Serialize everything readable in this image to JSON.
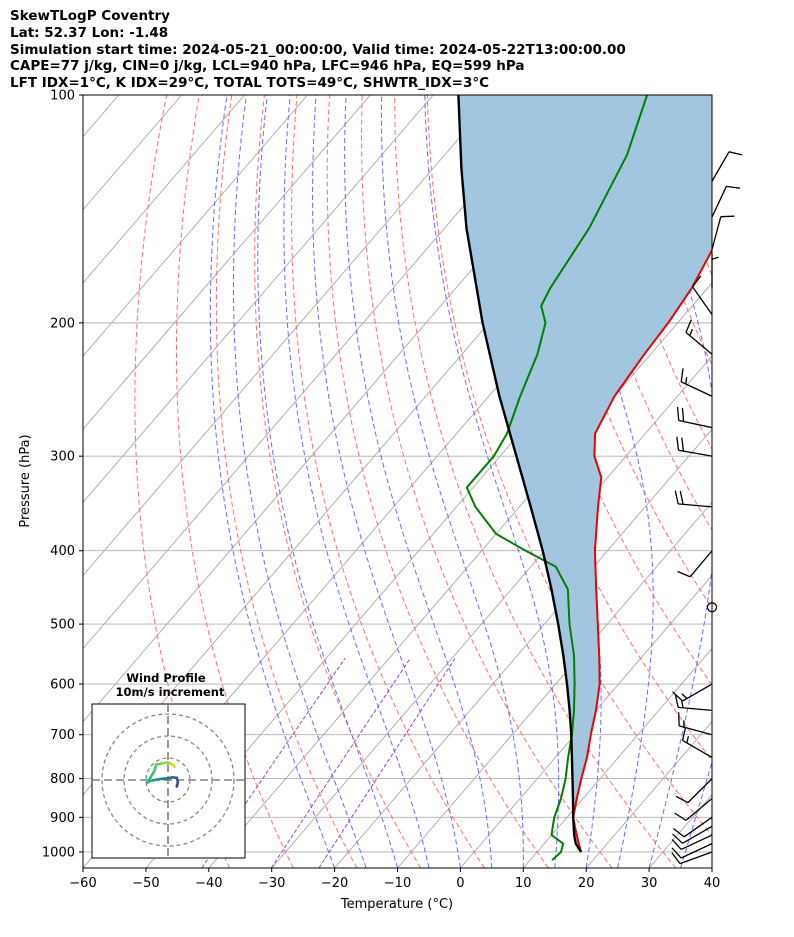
{
  "title_lines": [
    "SkewTLogP Coventry",
    "Lat: 52.37   Lon: -1.48",
    "Simulation start time: 2024-05-21_00:00:00, Valid time: 2024-05-22T13:00:00.00",
    "CAPE=77 j/kg, CIN=0 j/kg, LCL=940 hPa, LFC=946 hPa, EQ=599 hPa",
    "LFT IDX=1°C, K IDX=29°C, TOTAL TOTS=49°C, SHWTR_IDX=3°C"
  ],
  "chart_data": {
    "type": "skewt",
    "xlabel": "Temperature (°C)",
    "ylabel": "Pressure (hPa)",
    "xlim": [
      -60,
      40
    ],
    "ylim": [
      1050,
      100
    ],
    "x_ticks": [
      -60,
      -50,
      -40,
      -30,
      -20,
      -10,
      0,
      10,
      20,
      30,
      40
    ],
    "x_tick_labels": [
      "−60",
      "−50",
      "−40",
      "−30",
      "−20",
      "−10",
      "0",
      "10",
      "20",
      "30",
      "40"
    ],
    "y_ticks": [
      1000,
      900,
      800,
      700,
      600,
      500,
      400,
      300,
      200,
      100
    ],
    "y_tick_labels": [
      "1000",
      "900",
      "800",
      "700",
      "600",
      "500",
      "400",
      "300",
      "200",
      "100"
    ],
    "colors": {
      "temperature": "#ee0000",
      "dewpoint": "#008000",
      "parcel": "#000000",
      "cape_fill": "#a3c6e0",
      "dry_adiabat": "#ff6f6f",
      "moist_adiabat": "#6a6aff",
      "mixing_ratio": "#9b45c8",
      "isotherm": "#a8a8a8",
      "isobar": "#b0b0b0"
    },
    "temperature": [
      {
        "p": 1000,
        "t": 17.0
      },
      {
        "p": 975,
        "t": 15.5
      },
      {
        "p": 950,
        "t": 14.0
      },
      {
        "p": 925,
        "t": 12.5
      },
      {
        "p": 900,
        "t": 11.0
      },
      {
        "p": 850,
        "t": 9.0
      },
      {
        "p": 800,
        "t": 7.0
      },
      {
        "p": 750,
        "t": 5.0
      },
      {
        "p": 700,
        "t": 2.5
      },
      {
        "p": 650,
        "t": 0.0
      },
      {
        "p": 600,
        "t": -3.0
      },
      {
        "p": 550,
        "t": -7.0
      },
      {
        "p": 500,
        "t": -11.5
      },
      {
        "p": 450,
        "t": -16.5
      },
      {
        "p": 400,
        "t": -22.0
      },
      {
        "p": 350,
        "t": -27.5
      },
      {
        "p": 320,
        "t": -31.0
      },
      {
        "p": 300,
        "t": -35.0
      },
      {
        "p": 280,
        "t": -38.0
      },
      {
        "p": 250,
        "t": -40.0
      },
      {
        "p": 220,
        "t": -41.0
      },
      {
        "p": 200,
        "t": -41.5
      },
      {
        "p": 180,
        "t": -42.5
      },
      {
        "p": 160,
        "t": -44.5
      },
      {
        "p": 150,
        "t": -44.5
      },
      {
        "p": 140,
        "t": -45.0
      },
      {
        "p": 125,
        "t": -46.0
      },
      {
        "p": 110,
        "t": -48.0
      },
      {
        "p": 100,
        "t": -49.5
      }
    ],
    "dewpoint": [
      {
        "p": 1025,
        "t": 13.5
      },
      {
        "p": 1000,
        "t": 13.8
      },
      {
        "p": 975,
        "t": 13.0
      },
      {
        "p": 950,
        "t": 10.0
      },
      {
        "p": 925,
        "t": 9.0
      },
      {
        "p": 900,
        "t": 8.0
      },
      {
        "p": 850,
        "t": 6.5
      },
      {
        "p": 800,
        "t": 4.5
      },
      {
        "p": 750,
        "t": 2.0
      },
      {
        "p": 700,
        "t": -0.5
      },
      {
        "p": 650,
        "t": -3.5
      },
      {
        "p": 600,
        "t": -7.0
      },
      {
        "p": 550,
        "t": -11.0
      },
      {
        "p": 500,
        "t": -16.0
      },
      {
        "p": 450,
        "t": -21.0
      },
      {
        "p": 420,
        "t": -26.0
      },
      {
        "p": 400,
        "t": -33.0
      },
      {
        "p": 380,
        "t": -40.0
      },
      {
        "p": 350,
        "t": -47.0
      },
      {
        "p": 330,
        "t": -51.0
      },
      {
        "p": 300,
        "t": -51.0
      },
      {
        "p": 280,
        "t": -52.0
      },
      {
        "p": 250,
        "t": -55.0
      },
      {
        "p": 220,
        "t": -58.0
      },
      {
        "p": 200,
        "t": -61.0
      },
      {
        "p": 190,
        "t": -64.0
      },
      {
        "p": 180,
        "t": -65.0
      },
      {
        "p": 150,
        "t": -67.0
      },
      {
        "p": 120,
        "t": -71.0
      },
      {
        "p": 100,
        "t": -76.0
      }
    ],
    "parcel": [
      {
        "p": 1000,
        "t": 17.0
      },
      {
        "p": 975,
        "t": 15.0
      },
      {
        "p": 950,
        "t": 13.6
      },
      {
        "p": 900,
        "t": 11.0
      },
      {
        "p": 850,
        "t": 8.4
      },
      {
        "p": 800,
        "t": 5.6
      },
      {
        "p": 750,
        "t": 2.6
      },
      {
        "p": 700,
        "t": -0.6
      },
      {
        "p": 650,
        "t": -4.2
      },
      {
        "p": 600,
        "t": -8.2
      },
      {
        "p": 550,
        "t": -12.7
      },
      {
        "p": 500,
        "t": -17.8
      },
      {
        "p": 450,
        "t": -23.6
      },
      {
        "p": 400,
        "t": -30.3
      },
      {
        "p": 350,
        "t": -38.2
      },
      {
        "p": 300,
        "t": -47.4
      },
      {
        "p": 250,
        "t": -58.3
      },
      {
        "p": 200,
        "t": -71.0
      },
      {
        "p": 150,
        "t": -86.5
      },
      {
        "p": 125,
        "t": -95.5
      },
      {
        "p": 100,
        "t": -106.0
      }
    ],
    "winds": [
      {
        "p": 1000,
        "speed_kt": 10,
        "dir": 250
      },
      {
        "p": 975,
        "speed_kt": 10,
        "dir": 245
      },
      {
        "p": 950,
        "speed_kt": 10,
        "dir": 245
      },
      {
        "p": 925,
        "speed_kt": 10,
        "dir": 240
      },
      {
        "p": 900,
        "speed_kt": 10,
        "dir": 235
      },
      {
        "p": 850,
        "speed_kt": 10,
        "dir": 230
      },
      {
        "p": 800,
        "speed_kt": 10,
        "dir": 225
      },
      {
        "p": 750,
        "speed_kt": 15,
        "dir": 300
      },
      {
        "p": 700,
        "speed_kt": 15,
        "dir": 285
      },
      {
        "p": 650,
        "speed_kt": 15,
        "dir": 275
      },
      {
        "p": 600,
        "speed_kt": 15,
        "dir": 240
      },
      {
        "p": 475,
        "speed_kt": 0,
        "dir": 0
      },
      {
        "p": 400,
        "speed_kt": 10,
        "dir": 220
      },
      {
        "p": 350,
        "speed_kt": 20,
        "dir": 275
      },
      {
        "p": 300,
        "speed_kt": 20,
        "dir": 280
      },
      {
        "p": 275,
        "speed_kt": 20,
        "dir": 282
      },
      {
        "p": 250,
        "speed_kt": 15,
        "dir": 295
      },
      {
        "p": 220,
        "speed_kt": 15,
        "dir": 310
      },
      {
        "p": 195,
        "speed_kt": 10,
        "dir": 325
      },
      {
        "p": 180,
        "speed_kt": 5,
        "dir": 360
      },
      {
        "p": 160,
        "speed_kt": 10,
        "dir": 15
      },
      {
        "p": 145,
        "speed_kt": 10,
        "dir": 25
      },
      {
        "p": 130,
        "speed_kt": 10,
        "dir": 30
      }
    ],
    "hodograph": {
      "title": "Wind Profile",
      "subtitle": "10m/s increment",
      "rings_ms": [
        10,
        20,
        30
      ],
      "points": [
        {
          "u": 4,
          "v": -3,
          "c": "#482475"
        },
        {
          "u": 4.5,
          "v": -1,
          "c": "#414487"
        },
        {
          "u": 4,
          "v": 1,
          "c": "#3b528b"
        },
        {
          "u": 2,
          "v": 1.2,
          "c": "#355f8d"
        },
        {
          "u": 0,
          "v": 0.8,
          "c": "#2f6c8e"
        },
        {
          "u": -2,
          "v": 0.6,
          "c": "#2a788e"
        },
        {
          "u": -4,
          "v": 0.4,
          "c": "#25848e"
        },
        {
          "u": -6,
          "v": 0,
          "c": "#21918c"
        },
        {
          "u": -8,
          "v": -0.4,
          "c": "#1f9e89"
        },
        {
          "u": -9.5,
          "v": -1.2,
          "c": "#23a983"
        },
        {
          "u": -8,
          "v": 1,
          "c": "#2eb37c"
        },
        {
          "u": -6,
          "v": 4.5,
          "c": "#3bbc75"
        },
        {
          "u": -5.5,
          "v": 7,
          "c": "#51c56a"
        },
        {
          "u": -3,
          "v": 7.5,
          "c": "#6ccd5a"
        },
        {
          "u": 0,
          "v": 8,
          "c": "#89d548"
        },
        {
          "u": 2,
          "v": 7,
          "c": "#a8db34"
        },
        {
          "u": 3,
          "v": 6,
          "c": "#c8e020"
        }
      ]
    }
  }
}
